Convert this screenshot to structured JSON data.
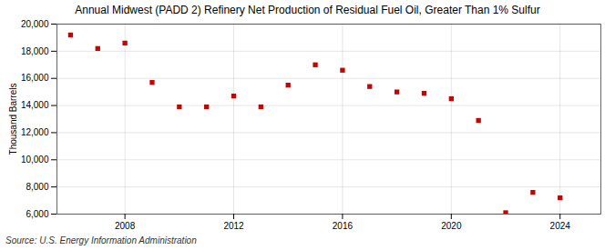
{
  "chart_data": {
    "type": "scatter",
    "title": "Annual Midwest (PADD 2) Refinery Net Production of Residual Fuel Oil, Greater Than 1% Sulfur",
    "ylabel": "Thousand Barrels",
    "annotation": "Source: U.S. Energy Information Administration",
    "x": [
      2006,
      2007,
      2008,
      2009,
      2010,
      2011,
      2012,
      2013,
      2014,
      2015,
      2016,
      2017,
      2018,
      2019,
      2020,
      2021,
      2022,
      2023,
      2024
    ],
    "values": [
      19200,
      18200,
      18600,
      15700,
      13900,
      13900,
      14700,
      13900,
      15500,
      17000,
      16600,
      15400,
      15000,
      14900,
      14500,
      12900,
      6100,
      7600,
      7200
    ],
    "color": "#cc0000",
    "marker": "square",
    "xlim": [
      2005.5,
      2025.5
    ],
    "xticks": [
      2008,
      2012,
      2016,
      2020,
      2024
    ],
    "ylim": [
      6000,
      20000
    ],
    "yticks": [
      {
        "value": 6000,
        "label": "6,000"
      },
      {
        "value": 8000,
        "label": "8,000"
      },
      {
        "value": 10000,
        "label": "10,000"
      },
      {
        "value": 12000,
        "label": "12,000"
      },
      {
        "value": 14000,
        "label": "14,000"
      },
      {
        "value": 16000,
        "label": "16,000"
      },
      {
        "value": 18000,
        "label": "18,000"
      },
      {
        "value": 20000,
        "label": "20,000"
      }
    ],
    "grid": true
  }
}
